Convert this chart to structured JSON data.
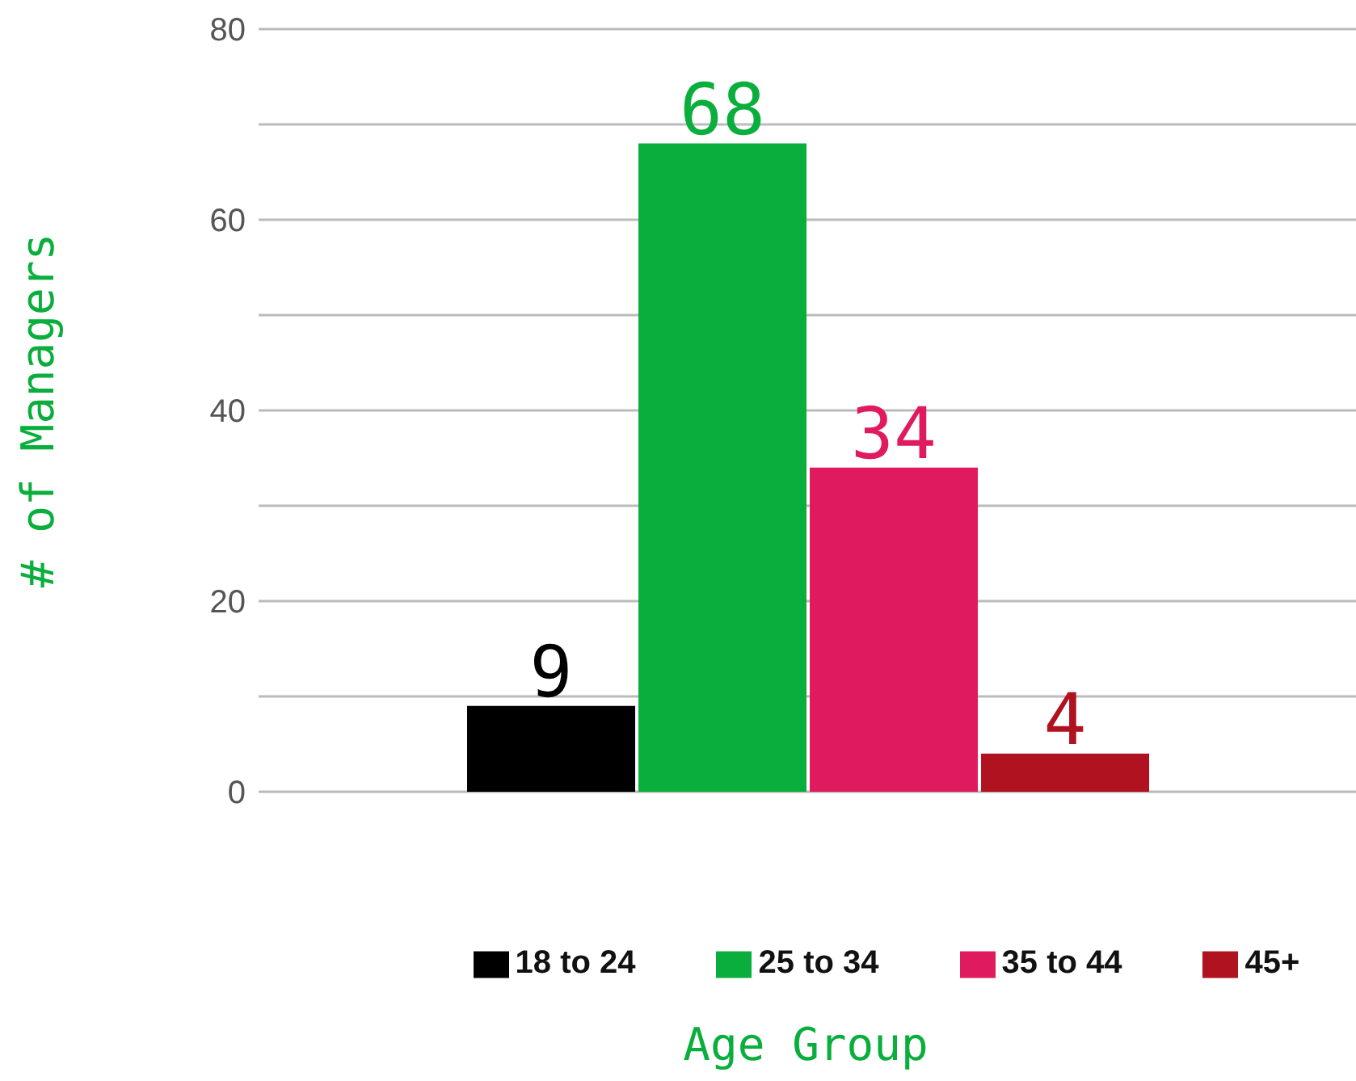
{
  "chart_data": {
    "type": "bar",
    "xlabel": "Age Group",
    "ylabel": "# of Managers",
    "categories": [
      null
    ],
    "series": [
      {
        "name": "18 to 24",
        "color": "#000000",
        "values": [
          9
        ]
      },
      {
        "name": "25 to 34",
        "color": "#0aae3c",
        "values": [
          68
        ]
      },
      {
        "name": "35 to 44",
        "color": "#e01a5e",
        "values": [
          34
        ]
      },
      {
        "name": "45+",
        "color": "#b0121f",
        "values": [
          4
        ]
      }
    ],
    "ylim": [
      0,
      80
    ],
    "yticks": [
      0,
      {
        "value": 10,
        "label": null
      },
      20,
      {
        "value": 30,
        "label": null
      },
      40,
      {
        "value": 50,
        "label": null
      },
      60,
      {
        "value": 70,
        "label": null
      },
      80
    ],
    "grid": "y",
    "legend": "bottom",
    "data_labels": true
  }
}
